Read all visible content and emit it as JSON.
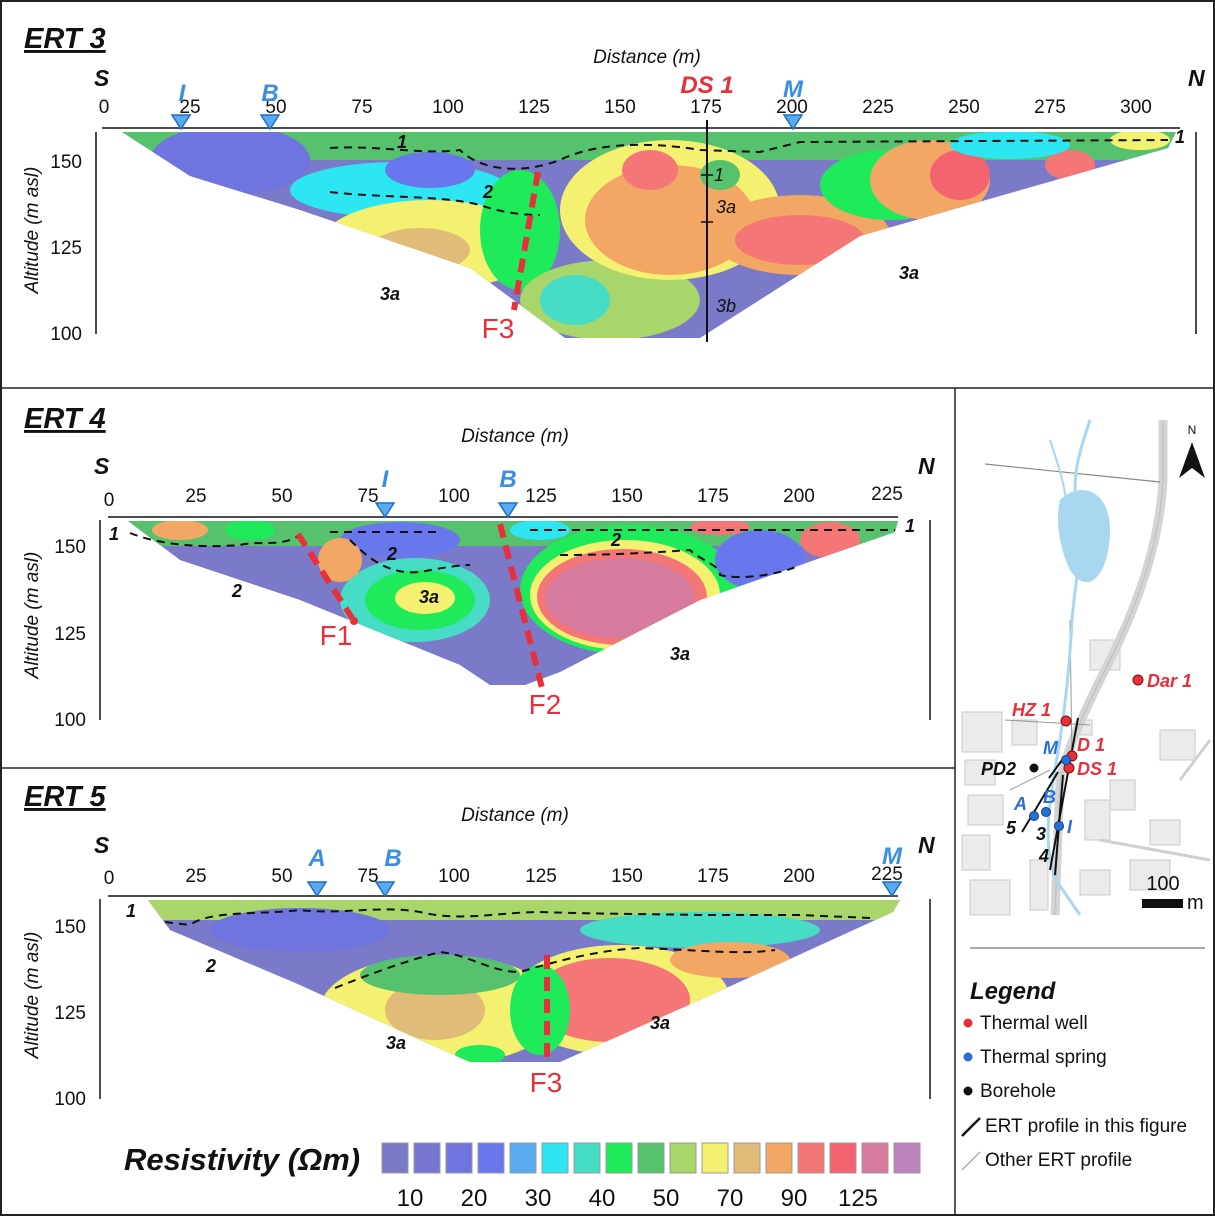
{
  "panels": [
    {
      "title": "ERT 3",
      "xlabel": "Distance (m)",
      "ylabel": "Altitude (m asl)",
      "left_dir": "S",
      "right_dir": "N",
      "dist_ticks": [
        "0",
        "25",
        "50",
        "75",
        "100",
        "125",
        "150",
        "175",
        "200",
        "225",
        "250",
        "275",
        "300"
      ],
      "alt_ticks": [
        "150",
        "125",
        "100"
      ],
      "markers": [
        "I",
        "B",
        "M"
      ],
      "well": "DS 1",
      "faults": [
        "F3"
      ],
      "layers": [
        "1",
        "1",
        "1",
        "2",
        "3a",
        "3a",
        "3a",
        "3b"
      ]
    },
    {
      "title": "ERT 4",
      "xlabel": "Distance (m)",
      "ylabel": "Altitude (m asl)",
      "left_dir": "S",
      "right_dir": "N",
      "dist_ticks": [
        "0",
        "25",
        "50",
        "75",
        "100",
        "125",
        "150",
        "175",
        "200",
        "225"
      ],
      "alt_ticks": [
        "150",
        "125",
        "100"
      ],
      "markers": [
        "I",
        "B"
      ],
      "faults": [
        "F1",
        "F2"
      ],
      "layers": [
        "1",
        "1",
        "2",
        "2",
        "2",
        "3a",
        "3a"
      ]
    },
    {
      "title": "ERT 5",
      "xlabel": "Distance (m)",
      "ylabel": "Altitude (m asl)",
      "left_dir": "S",
      "right_dir": "N",
      "dist_ticks": [
        "0",
        "25",
        "50",
        "75",
        "100",
        "125",
        "150",
        "175",
        "200",
        "225"
      ],
      "alt_ticks": [
        "150",
        "125",
        "100"
      ],
      "markers": [
        "A",
        "B",
        "M"
      ],
      "faults": [
        "F3"
      ],
      "layers": [
        "1",
        "2",
        "3a",
        "3a"
      ]
    }
  ],
  "map": {
    "north": "N",
    "scale_value": "100",
    "scale_unit": "m",
    "thermal_wells": [
      "Dar 1",
      "HZ 1",
      "D 1",
      "DS 1"
    ],
    "thermal_springs": [
      "M",
      "A",
      "B",
      "I"
    ],
    "boreholes": [
      "PD2"
    ],
    "profile_numbers": [
      "5",
      "3",
      "4"
    ]
  },
  "legend": {
    "title": "Legend",
    "items": [
      "Thermal well",
      "Thermal spring",
      "Borehole",
      "ERT profile in this figure",
      "Other ERT profile"
    ],
    "colors": {
      "thermal_well": "#e8303a",
      "thermal_spring": "#2a6fd6",
      "borehole": "#111111"
    }
  },
  "resistivity": {
    "title": "Resistivity (Ωm)",
    "ticks": [
      "10",
      "20",
      "30",
      "40",
      "50",
      "70",
      "90",
      "125"
    ],
    "colors": [
      "#7a7ac8",
      "#7676d2",
      "#6f74de",
      "#6878ec",
      "#5aaaf0",
      "#2ee6f2",
      "#46dcc6",
      "#1eea5a",
      "#56c26e",
      "#a8d66a",
      "#f4f070",
      "#e0bc78",
      "#f2a864",
      "#f47676",
      "#f46470",
      "#d67a9e",
      "#bc82bc"
    ]
  }
}
